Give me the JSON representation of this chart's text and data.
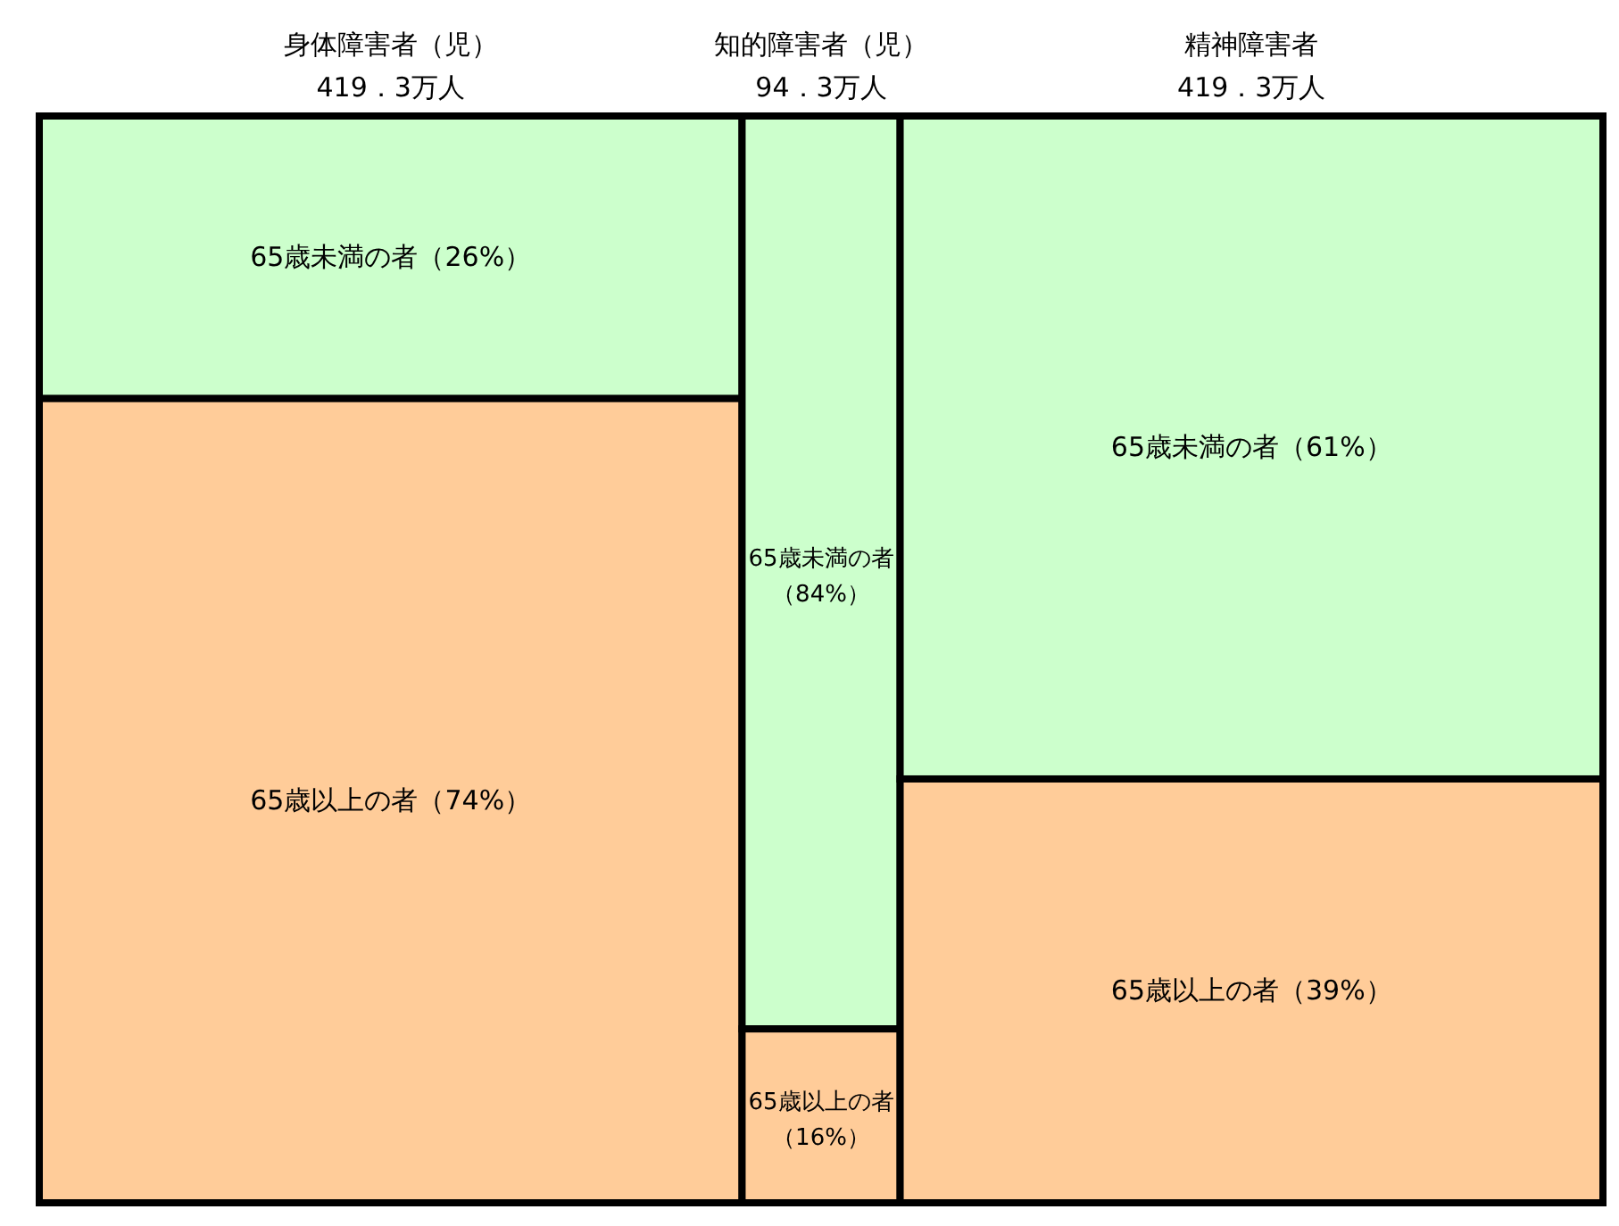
{
  "chart_data": {
    "type": "other",
    "categories": [
      "身体障害者（児）",
      "知的障害者（児）",
      "精神障害者"
    ],
    "values": [
      419.3,
      94.3,
      419.3
    ],
    "value_labels": [
      "419．3万人",
      "94．3万人",
      "419．3万人"
    ],
    "series": [
      {
        "name": "65歳未満の者",
        "color": "#ccffcc",
        "values": [
          26,
          84,
          61
        ],
        "value_labels": [
          "（26%）",
          "（84%）",
          "（61%）"
        ]
      },
      {
        "name": "65歳以上の者",
        "color": "#ffcc99",
        "values": [
          74,
          16,
          39
        ],
        "value_labels": [
          "（74%）",
          "（16%）",
          "（39%）"
        ]
      }
    ]
  }
}
